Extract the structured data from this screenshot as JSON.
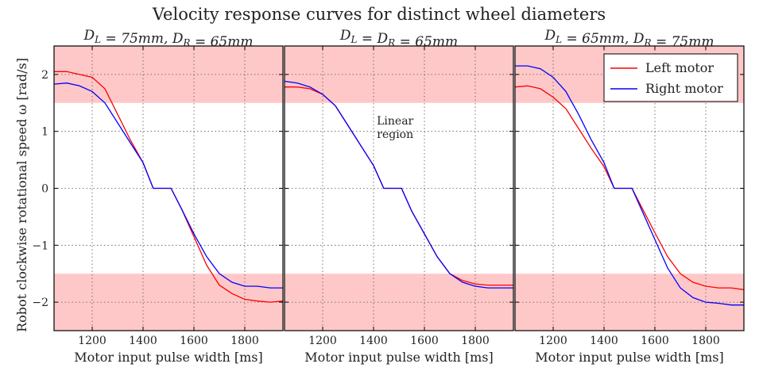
{
  "figure": {
    "title": "Velocity response curves for distinct wheel diameters",
    "ylabel": "Robot clockwise rotational speed ω [rad/s]"
  },
  "legend": {
    "placement": "top-right of third panel",
    "entries": [
      {
        "label": "Left motor",
        "color": "#ff0000"
      },
      {
        "label": "Right motor",
        "color": "#0000ff"
      }
    ]
  },
  "saturation_band_color": "#ffc8c8",
  "chart_data": [
    {
      "type": "line",
      "subtitle": "D_L = 75mm, D_R = 65mm",
      "xlabel": "Motor input pulse width [ms]",
      "xlim": [
        1050,
        1950
      ],
      "ylim": [
        -2.5,
        2.5
      ],
      "xticks": [
        1200,
        1400,
        1600,
        1800
      ],
      "yticks": [
        -2,
        -1,
        0,
        1,
        2
      ],
      "ytick_labels": [
        "−2",
        "−1",
        "0",
        "1",
        "2"
      ],
      "grid": true,
      "shaded_bands": [
        [
          1.5,
          2.5
        ],
        [
          -2.5,
          -1.5
        ]
      ],
      "series": [
        {
          "name": "Left motor",
          "color": "#ff0000",
          "x": [
            1050,
            1100,
            1150,
            1200,
            1250,
            1300,
            1350,
            1400,
            1440,
            1450,
            1500,
            1510,
            1550,
            1600,
            1650,
            1700,
            1750,
            1800,
            1850,
            1900,
            1950
          ],
          "y": [
            2.05,
            2.05,
            2.0,
            1.95,
            1.75,
            1.3,
            0.85,
            0.45,
            0.0,
            0.0,
            0.0,
            0.0,
            -0.35,
            -0.85,
            -1.35,
            -1.7,
            -1.85,
            -1.95,
            -1.98,
            -2.0,
            -1.98
          ]
        },
        {
          "name": "Right motor",
          "color": "#0000ff",
          "x": [
            1050,
            1100,
            1150,
            1200,
            1250,
            1300,
            1350,
            1400,
            1440,
            1450,
            1500,
            1510,
            1550,
            1600,
            1650,
            1700,
            1750,
            1800,
            1850,
            1900,
            1950
          ],
          "y": [
            1.83,
            1.85,
            1.8,
            1.7,
            1.5,
            1.15,
            0.8,
            0.45,
            0.0,
            0.0,
            0.0,
            0.0,
            -0.35,
            -0.8,
            -1.2,
            -1.5,
            -1.65,
            -1.72,
            -1.72,
            -1.75,
            -1.75
          ]
        }
      ]
    },
    {
      "type": "line",
      "subtitle": "D_L = D_R = 65mm",
      "xlabel": "Motor input pulse width [ms]",
      "xlim": [
        1050,
        1950
      ],
      "ylim": [
        -2.5,
        2.5
      ],
      "xticks": [
        1200,
        1400,
        1600,
        1800
      ],
      "grid": true,
      "shaded_bands": [
        [
          1.5,
          2.5
        ],
        [
          -2.5,
          -1.5
        ]
      ],
      "annotation": "Linear region",
      "series": [
        {
          "name": "Left motor",
          "color": "#ff0000",
          "x": [
            1050,
            1100,
            1150,
            1200,
            1250,
            1300,
            1350,
            1400,
            1440,
            1450,
            1500,
            1510,
            1550,
            1600,
            1650,
            1700,
            1750,
            1800,
            1850,
            1900,
            1950
          ],
          "y": [
            1.78,
            1.78,
            1.75,
            1.65,
            1.45,
            1.1,
            0.75,
            0.4,
            0.0,
            0.0,
            0.0,
            0.0,
            -0.4,
            -0.8,
            -1.2,
            -1.5,
            -1.62,
            -1.68,
            -1.7,
            -1.7,
            -1.7
          ]
        },
        {
          "name": "Right motor",
          "color": "#0000ff",
          "x": [
            1050,
            1100,
            1150,
            1200,
            1250,
            1300,
            1350,
            1400,
            1440,
            1450,
            1500,
            1510,
            1550,
            1600,
            1650,
            1700,
            1750,
            1800,
            1850,
            1900,
            1950
          ],
          "y": [
            1.88,
            1.85,
            1.78,
            1.65,
            1.45,
            1.1,
            0.75,
            0.4,
            0.0,
            0.0,
            0.0,
            0.0,
            -0.4,
            -0.8,
            -1.2,
            -1.5,
            -1.65,
            -1.72,
            -1.75,
            -1.75,
            -1.75
          ]
        }
      ]
    },
    {
      "type": "line",
      "subtitle": "D_L = 65mm, D_R = 75mm",
      "xlabel": "Motor input pulse width [ms]",
      "xlim": [
        1050,
        1950
      ],
      "ylim": [
        -2.5,
        2.5
      ],
      "xticks": [
        1200,
        1400,
        1600,
        1800
      ],
      "grid": true,
      "shaded_bands": [
        [
          1.5,
          2.5
        ],
        [
          -2.5,
          -1.5
        ]
      ],
      "series": [
        {
          "name": "Left motor",
          "color": "#ff0000",
          "x": [
            1050,
            1100,
            1150,
            1200,
            1250,
            1300,
            1350,
            1400,
            1440,
            1450,
            1500,
            1510,
            1550,
            1600,
            1650,
            1700,
            1750,
            1800,
            1850,
            1900,
            1950
          ],
          "y": [
            1.78,
            1.8,
            1.75,
            1.6,
            1.4,
            1.05,
            0.7,
            0.38,
            0.0,
            0.0,
            0.0,
            0.0,
            -0.35,
            -0.78,
            -1.2,
            -1.5,
            -1.65,
            -1.72,
            -1.75,
            -1.75,
            -1.78
          ]
        },
        {
          "name": "Right motor",
          "color": "#0000ff",
          "x": [
            1050,
            1100,
            1150,
            1200,
            1250,
            1300,
            1350,
            1400,
            1440,
            1450,
            1500,
            1510,
            1550,
            1600,
            1650,
            1700,
            1750,
            1800,
            1850,
            1900,
            1950
          ],
          "y": [
            2.15,
            2.15,
            2.1,
            1.95,
            1.7,
            1.3,
            0.85,
            0.45,
            0.0,
            0.0,
            0.0,
            0.0,
            -0.4,
            -0.9,
            -1.4,
            -1.75,
            -1.92,
            -2.0,
            -2.02,
            -2.05,
            -2.05
          ]
        }
      ]
    }
  ]
}
